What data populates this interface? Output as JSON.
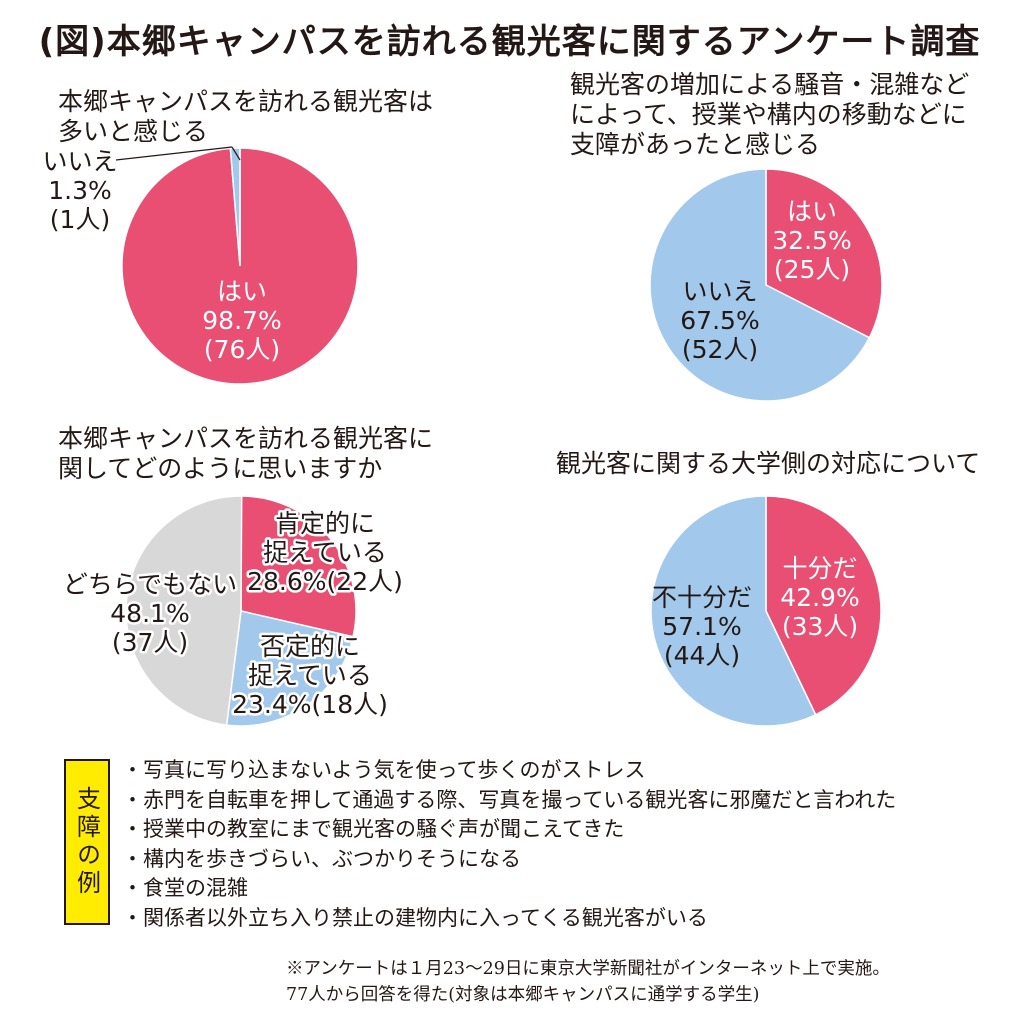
{
  "title": "(図)本郷キャンパスを訪れる観光客に関するアンケート調査",
  "colors": {
    "yes": "#e94f73",
    "no": "#a2c9eb",
    "neutral": "#d8d8d8",
    "outline": "#ffffff"
  },
  "chart_data": [
    {
      "type": "pie",
      "title_lines": [
        "本郷キャンパスを訪れる観光客は",
        "多いと感じる"
      ],
      "slices": [
        {
          "lines": [
            "はい",
            "98.7%",
            "(76人)"
          ],
          "percent": 98.7,
          "count": 76,
          "color": "yes"
        },
        {
          "lines": [
            "いいえ",
            "1.3%",
            "(1人)"
          ],
          "percent": 1.3,
          "count": 1,
          "color": "no"
        }
      ]
    },
    {
      "type": "pie",
      "title_lines": [
        "観光客の増加による騒音・混雑など",
        "によって、授業や構内の移動などに",
        "支障があったと感じる"
      ],
      "slices": [
        {
          "lines": [
            "はい",
            "32.5%",
            "(25人)"
          ],
          "percent": 32.5,
          "count": 25,
          "color": "yes"
        },
        {
          "lines": [
            "いいえ",
            "67.5%",
            "(52人)"
          ],
          "percent": 67.5,
          "count": 52,
          "color": "no"
        }
      ]
    },
    {
      "type": "pie",
      "title_lines": [
        "本郷キャンパスを訪れる観光客に",
        "関してどのように思いますか"
      ],
      "slices": [
        {
          "lines": [
            "肯定的に",
            "捉えている",
            "28.6%(22人)"
          ],
          "percent": 28.6,
          "count": 22,
          "color": "yes"
        },
        {
          "lines": [
            "否定的に",
            "捉えている",
            "23.4%(18人)"
          ],
          "percent": 23.4,
          "count": 18,
          "color": "no"
        },
        {
          "lines": [
            "どちらでもない",
            "48.1%",
            "(37人)"
          ],
          "percent": 48.1,
          "count": 37,
          "color": "neutral"
        }
      ]
    },
    {
      "type": "pie",
      "title_lines": [
        "観光客に関する大学側の対応について"
      ],
      "slices": [
        {
          "lines": [
            "十分だ",
            "42.9%",
            "(33人)"
          ],
          "percent": 42.9,
          "count": 33,
          "color": "yes"
        },
        {
          "lines": [
            "不十分だ",
            "57.1%",
            "(44人)"
          ],
          "percent": 57.1,
          "count": 44,
          "color": "no"
        }
      ]
    }
  ],
  "examples": {
    "label": "支障の例",
    "items": [
      "写真に写り込まないよう気を使って歩くのがストレス",
      "赤門を自転車を押して通過する際、写真を撮っている観光客に邪魔だと言われた",
      "授業中の教室にまで観光客の騒ぐ声が聞こえてきた",
      "構内を歩きづらい、ぶつかりそうになる",
      "食堂の混雑",
      "関係者以外立ち入り禁止の建物内に入ってくる観光客がいる"
    ]
  },
  "note_lines": [
    "※アンケートは１月23〜29日に東京大学新聞社がインターネット上で実施。",
    "77人から回答を得た(対象は本郷キャンパスに通学する学生)"
  ]
}
